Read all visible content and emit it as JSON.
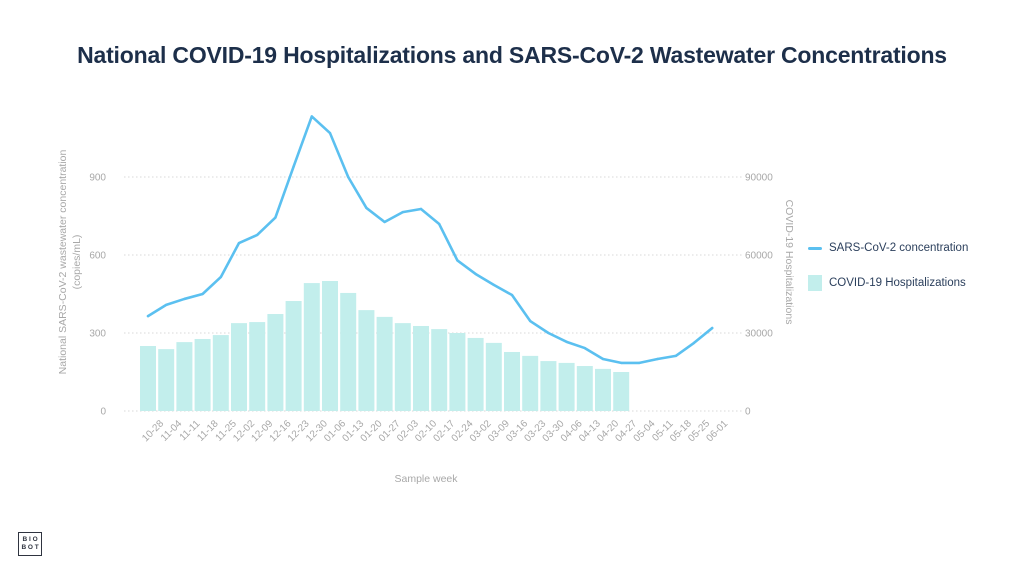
{
  "title": "National COVID-19 Hospitalizations and SARS-CoV-2 Wastewater Concentrations",
  "logo": {
    "line1": "BIO",
    "line2": "BOT"
  },
  "colors": {
    "line": "#5bc0f0",
    "bar": "#c2eeec",
    "title": "#1d2f4a",
    "grid": "#d8d8d8",
    "tick": "#a8a8a8"
  },
  "chart_data": {
    "type": "bar+line",
    "title": "National COVID-19 Hospitalizations and SARS-CoV-2 Wastewater Concentrations",
    "xlabel": "Sample week",
    "ylabel_left": "National SARS-CoV-2 wastewater concentration (copies/mL)",
    "ylabel_left_lines": [
      "National SARS-CoV-2 wastewater concentration",
      "(copies/mL)"
    ],
    "ylabel_right": "COVID-19 Hospitalizations",
    "ylim_left": [
      0,
      1200
    ],
    "ylim_right": [
      0,
      120000
    ],
    "yticks_left": [
      0,
      300,
      600,
      900
    ],
    "yticks_right": [
      0,
      30000,
      60000,
      90000
    ],
    "grid": true,
    "legend_position": "right",
    "categories": [
      "10-28",
      "11-04",
      "11-11",
      "11-18",
      "11-25",
      "12-02",
      "12-09",
      "12-16",
      "12-23",
      "12-30",
      "01-06",
      "01-13",
      "01-20",
      "01-27",
      "02-03",
      "02-10",
      "02-17",
      "02-24",
      "03-02",
      "03-09",
      "03-16",
      "03-23",
      "03-30",
      "04-06",
      "04-13",
      "04-20",
      "04-27",
      "05-04",
      "05-11",
      "05-18",
      "05-25",
      "06-01"
    ],
    "series": [
      {
        "name": "SARS-CoV-2 concentration",
        "type": "line",
        "axis": "left",
        "values": [
          365,
          408,
          431,
          450,
          515,
          646,
          677,
          744,
          940,
          1133,
          1069,
          900,
          781,
          727,
          765,
          777,
          719,
          579,
          527,
          485,
          446,
          346,
          300,
          266,
          242,
          200,
          185,
          185,
          200,
          212,
          262,
          319
        ]
      },
      {
        "name": "COVID-19 Hospitalizations",
        "type": "bar",
        "axis": "right",
        "values": [
          25000,
          23800,
          26500,
          27700,
          29200,
          33800,
          34200,
          37300,
          42300,
          49200,
          50000,
          45400,
          38800,
          36200,
          33800,
          32700,
          31500,
          30000,
          28100,
          26200,
          22700,
          21200,
          19200,
          18500,
          17300,
          16200,
          15000,
          null,
          null,
          null,
          null,
          null
        ]
      }
    ]
  }
}
